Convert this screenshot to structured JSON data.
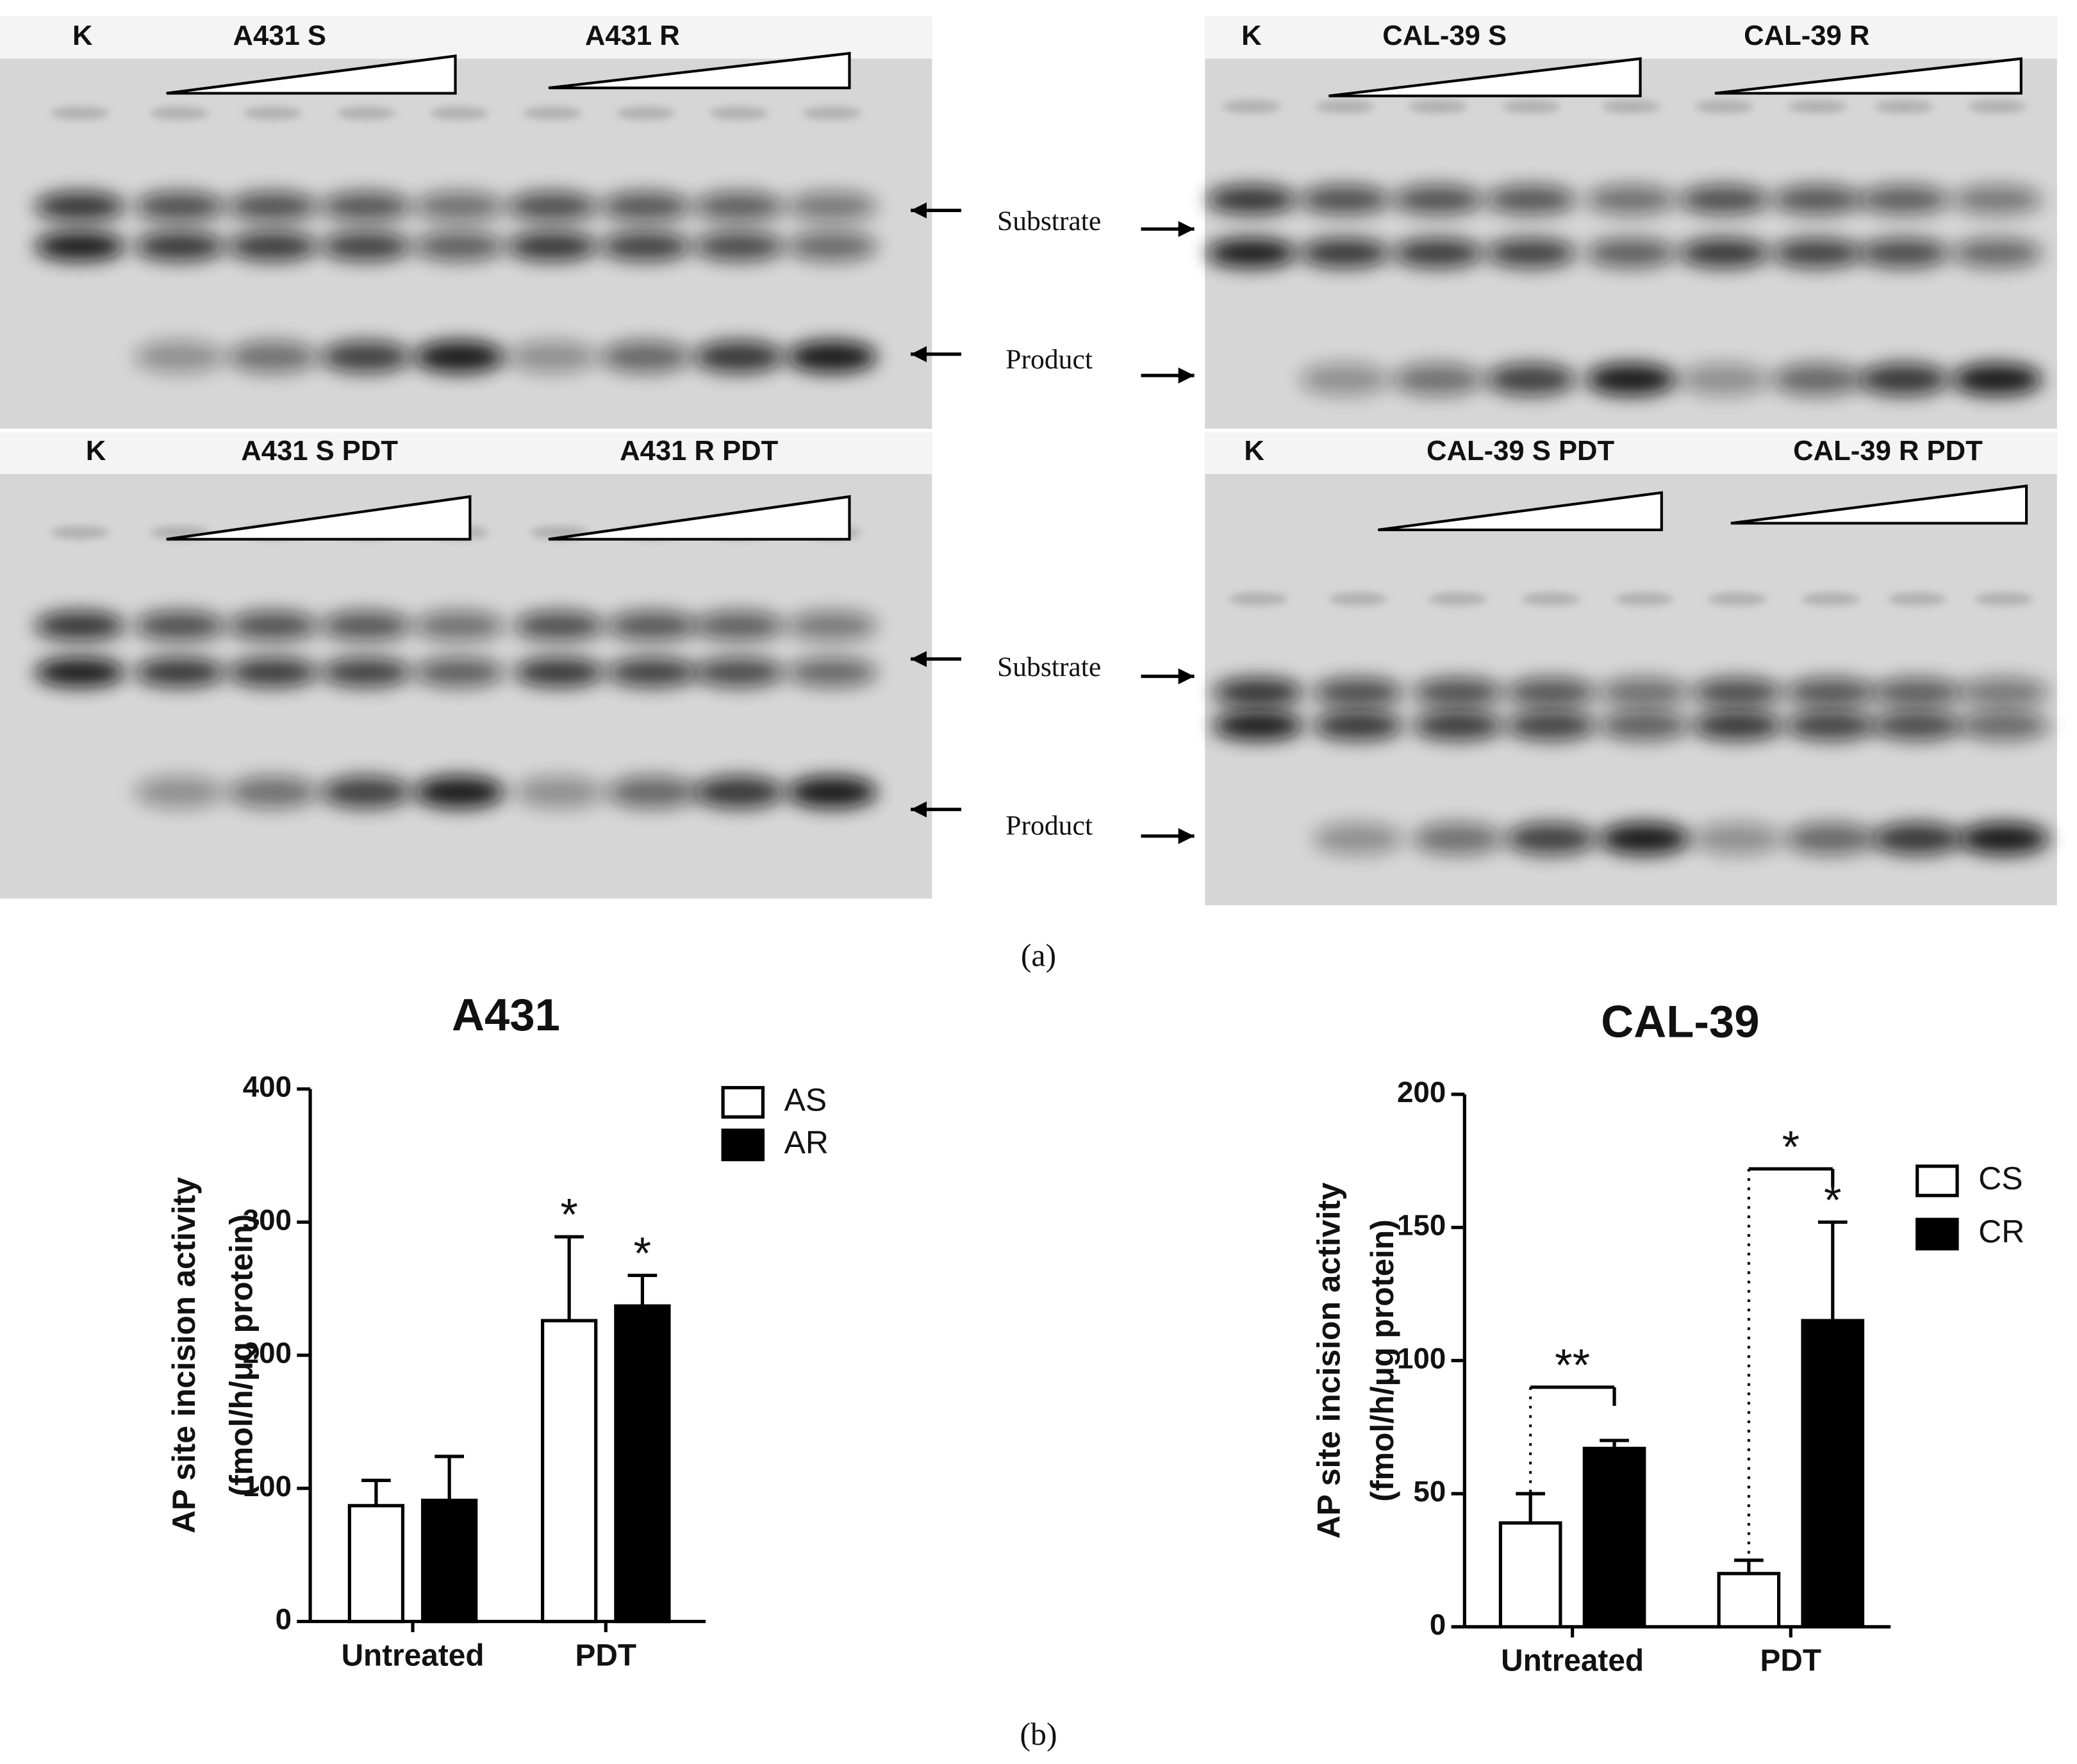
{
  "gels": [
    {
      "k": "K",
      "groups": [
        "A431 S",
        "A431 R"
      ]
    },
    {
      "k": "K",
      "groups": [
        "CAL-39 S",
        "CAL-39 R"
      ]
    },
    {
      "k": "K",
      "groups": [
        "A431 S PDT",
        "A431 R PDT"
      ]
    },
    {
      "k": "K",
      "groups": [
        "CAL-39 S PDT",
        "CAL-39 R PDT"
      ]
    }
  ],
  "markers": [
    {
      "substrate": "Substrate",
      "product": "Product"
    },
    {
      "substrate": "Substrate",
      "product": "Product"
    }
  ],
  "caption_a": "(a)",
  "caption_b": "(b)",
  "chart_data": [
    {
      "type": "bar",
      "title": "A431",
      "ylabel": [
        "AP site incision activity",
        "(fmol/h/μg protein)"
      ],
      "categories": [
        "Untreated",
        "PDT"
      ],
      "series": [
        {
          "name": "AS",
          "color": "#ffffff",
          "values": [
            87,
            226
          ],
          "errors": [
            19,
            63
          ]
        },
        {
          "name": "AR",
          "color": "#000000",
          "values": [
            91,
            237
          ],
          "errors": [
            33,
            23
          ]
        }
      ],
      "ylim": [
        0,
        400
      ],
      "yticks": [
        0,
        100,
        200,
        300,
        400
      ],
      "annotations": [
        {
          "text": "*",
          "category": "PDT",
          "series": "AS"
        },
        {
          "text": "*",
          "category": "PDT",
          "series": "AR"
        }
      ]
    },
    {
      "type": "bar",
      "title": "CAL-39",
      "ylabel": [
        "AP site incision activity",
        "(fmol/h/μg protein)"
      ],
      "categories": [
        "Untreated",
        "PDT"
      ],
      "series": [
        {
          "name": "CS",
          "color": "#ffffff",
          "values": [
            39,
            20
          ],
          "errors": [
            11,
            5
          ]
        },
        {
          "name": "CR",
          "color": "#000000",
          "values": [
            67,
            115
          ],
          "errors": [
            3,
            37
          ]
        }
      ],
      "ylim": [
        0,
        200
      ],
      "yticks": [
        0,
        50,
        100,
        150,
        200
      ],
      "annotations": [
        {
          "text": "**",
          "category": "Untreated",
          "series": [
            "CS",
            "CR"
          ]
        },
        {
          "text": "*",
          "category": "PDT",
          "series": [
            "CS",
            "CR"
          ]
        },
        {
          "text": "*",
          "category": "PDT",
          "series": "CR"
        }
      ]
    }
  ]
}
